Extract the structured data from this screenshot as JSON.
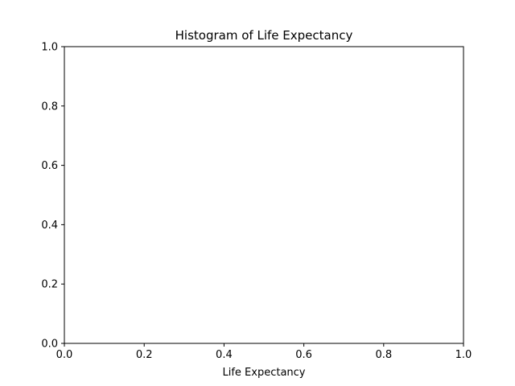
{
  "chart_data": {
    "type": "bar",
    "title": "Histogram of Life Expectancy",
    "xlabel": "Life Expectancy",
    "ylabel": "",
    "xlim": [
      0.0,
      1.0
    ],
    "ylim": [
      0.0,
      1.0
    ],
    "x_ticks": [
      "0.0",
      "0.2",
      "0.4",
      "0.6",
      "0.8",
      "1.0"
    ],
    "y_ticks": [
      "0.0",
      "0.2",
      "0.4",
      "0.6",
      "0.8",
      "1.0"
    ],
    "bins": [],
    "values": [],
    "grid": false,
    "legend": "none"
  }
}
